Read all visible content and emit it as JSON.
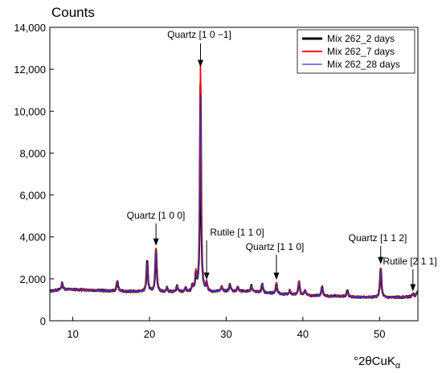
{
  "chart_data": {
    "type": "line",
    "title": "",
    "ylabel": "Counts",
    "xlabel_parts": {
      "main": "°2θCuK",
      "sub": "α"
    },
    "xlim": [
      7,
      55
    ],
    "ylim": [
      0,
      14000
    ],
    "xticks": [
      10,
      20,
      30,
      40,
      50
    ],
    "yticks": [
      0,
      2000,
      4000,
      6000,
      8000,
      10000,
      12000,
      14000
    ],
    "xtick_labels": [
      "10",
      "20",
      "30",
      "40",
      "50"
    ],
    "ytick_labels": [
      "0",
      "2,000",
      "4,000",
      "6,000",
      "8,000",
      "10,000",
      "12,000",
      "14,000"
    ],
    "grid": false,
    "legend_position": "top-right",
    "baseline": [
      [
        7,
        1420
      ],
      [
        9,
        1500
      ],
      [
        12,
        1470
      ],
      [
        15,
        1420
      ],
      [
        18,
        1390
      ],
      [
        20,
        1380
      ],
      [
        22,
        1370
      ],
      [
        25,
        1360
      ],
      [
        28,
        1370
      ],
      [
        30,
        1400
      ],
      [
        33,
        1400
      ],
      [
        35,
        1330
      ],
      [
        38,
        1250
      ],
      [
        42,
        1180
      ],
      [
        45,
        1160
      ],
      [
        48,
        1120
      ],
      [
        51,
        1100
      ],
      [
        55,
        1150
      ]
    ],
    "series": [
      {
        "name": "Mix 262_2 days",
        "color": "#000000",
        "peaks": [
          [
            8.6,
            300
          ],
          [
            15.8,
            500
          ],
          [
            19.7,
            1450
          ],
          [
            20.85,
            2050
          ],
          [
            22.3,
            200
          ],
          [
            23.6,
            300
          ],
          [
            24.7,
            200
          ],
          [
            25.6,
            250
          ],
          [
            26.05,
            800
          ],
          [
            26.65,
            9950
          ],
          [
            27.45,
            400
          ],
          [
            29.4,
            250
          ],
          [
            30.5,
            350
          ],
          [
            31.5,
            200
          ],
          [
            33.3,
            300
          ],
          [
            34.7,
            400
          ],
          [
            36.55,
            500
          ],
          [
            38.3,
            200
          ],
          [
            39.5,
            650
          ],
          [
            40.3,
            250
          ],
          [
            42.5,
            450
          ],
          [
            45.8,
            300
          ],
          [
            50.15,
            1400
          ],
          [
            54.35,
            150
          ],
          [
            54.9,
            250
          ]
        ]
      },
      {
        "name": "Mix 262_7 days",
        "color": "#ff0000",
        "peaks": [
          [
            8.6,
            300
          ],
          [
            15.8,
            520
          ],
          [
            19.7,
            1400
          ],
          [
            20.85,
            2100
          ],
          [
            22.3,
            200
          ],
          [
            23.6,
            300
          ],
          [
            24.7,
            200
          ],
          [
            25.6,
            250
          ],
          [
            26.05,
            850
          ],
          [
            26.65,
            11000
          ],
          [
            27.45,
            400
          ],
          [
            29.4,
            250
          ],
          [
            30.5,
            350
          ],
          [
            31.5,
            200
          ],
          [
            33.3,
            300
          ],
          [
            34.7,
            400
          ],
          [
            36.55,
            500
          ],
          [
            38.3,
            200
          ],
          [
            39.5,
            650
          ],
          [
            40.3,
            250
          ],
          [
            42.5,
            430
          ],
          [
            45.8,
            300
          ],
          [
            50.15,
            1350
          ],
          [
            54.35,
            150
          ],
          [
            54.9,
            250
          ]
        ]
      },
      {
        "name": "Mix 262_28 days",
        "color": "#3333cc",
        "peaks": [
          [
            8.6,
            280
          ],
          [
            15.8,
            500
          ],
          [
            19.7,
            1350
          ],
          [
            20.85,
            1950
          ],
          [
            22.3,
            200
          ],
          [
            23.6,
            300
          ],
          [
            24.7,
            200
          ],
          [
            25.6,
            250
          ],
          [
            26.05,
            800
          ],
          [
            26.65,
            9500
          ],
          [
            27.45,
            400
          ],
          [
            29.4,
            250
          ],
          [
            30.5,
            350
          ],
          [
            31.5,
            200
          ],
          [
            33.3,
            300
          ],
          [
            34.7,
            400
          ],
          [
            36.55,
            450
          ],
          [
            38.3,
            200
          ],
          [
            39.5,
            600
          ],
          [
            40.3,
            250
          ],
          [
            42.5,
            430
          ],
          [
            45.8,
            300
          ],
          [
            50.15,
            1300
          ],
          [
            54.35,
            150
          ],
          [
            54.9,
            250
          ]
        ]
      }
    ],
    "annotations": [
      {
        "text": "Quartz [1 0 −1]",
        "x": 26.65,
        "tip_y": 12100
      },
      {
        "text": "Quartz [1 0 0]",
        "x": 20.85,
        "tip_y": 3580
      },
      {
        "text": "Rutile [1 1 0]",
        "x": 27.45,
        "tip_y": 1950
      },
      {
        "text": "Quartz [1 1 0]",
        "x": 36.55,
        "tip_y": 1950
      },
      {
        "text": "Quartz [1 1 2]",
        "x": 50.15,
        "tip_y": 2700
      },
      {
        "text": "Rutile [2 1 1]",
        "x": 54.35,
        "tip_y": 1400
      }
    ]
  }
}
